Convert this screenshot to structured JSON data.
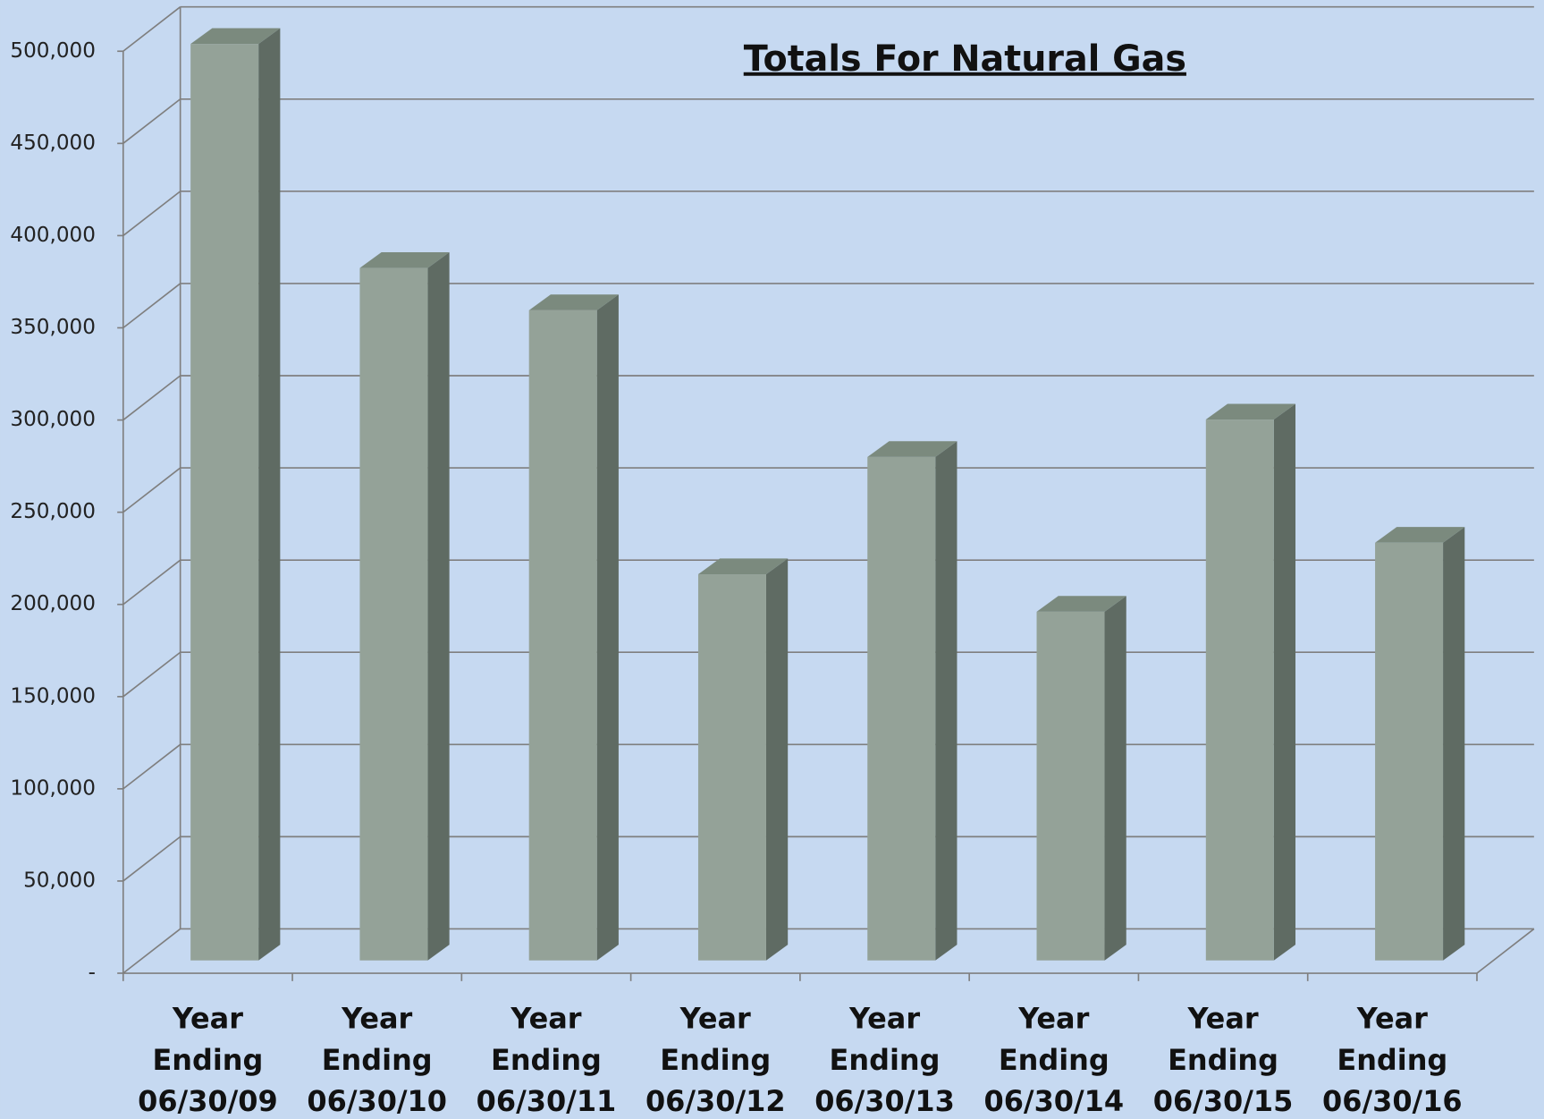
{
  "chart_data": {
    "type": "bar3d",
    "title": "Totals For Natural Gas",
    "categories": [
      [
        "Year",
        "Ending",
        "06/30/09"
      ],
      [
        "Year",
        "Ending",
        "06/30/10"
      ],
      [
        "Year",
        "Ending",
        "06/30/11"
      ],
      [
        "Year",
        "Ending",
        "06/30/12"
      ],
      [
        "Year",
        "Ending",
        "06/30/13"
      ],
      [
        "Year",
        "Ending",
        "06/30/14"
      ],
      [
        "Year",
        "Ending",
        "06/30/15"
      ],
      [
        "Year",
        "Ending",
        "06/30/16"
      ]
    ],
    "values": [
      497000,
      375500,
      352600,
      209400,
      273000,
      189100,
      293300,
      226500
    ],
    "color": "#94a298",
    "ylim": [
      0,
      500000
    ],
    "yticks": [
      {
        "value": 0,
        "label": "-"
      },
      {
        "value": 50000,
        "label": "50,000"
      },
      {
        "value": 100000,
        "label": "100,000"
      },
      {
        "value": 150000,
        "label": "150,000"
      },
      {
        "value": 200000,
        "label": "200,000"
      },
      {
        "value": 250000,
        "label": "250,000"
      },
      {
        "value": 300000,
        "label": "300,000"
      },
      {
        "value": 350000,
        "label": "350,000"
      },
      {
        "value": 400000,
        "label": "400,000"
      },
      {
        "value": 450000,
        "label": "450,000"
      },
      {
        "value": 500000,
        "label": "500,000"
      }
    ],
    "grid": true
  }
}
